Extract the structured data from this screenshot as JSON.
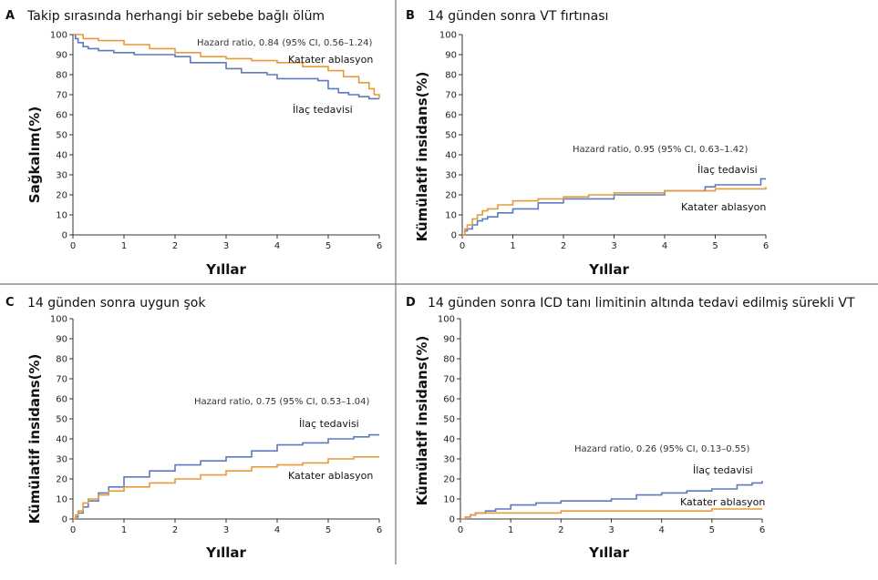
{
  "colors": {
    "ilac": "#5b7bbf",
    "ablasyon": "#e69a3a",
    "axis": "#333333",
    "divider": "#777777"
  },
  "chart_data": [
    {
      "type": "line",
      "panel": "A",
      "title": "Takip sırasında herhangi bir sebebe bağlı ölüm",
      "xlabel": "Yıllar",
      "ylabel": "Sağkalım(%)",
      "xlim": [
        0,
        6
      ],
      "ylim": [
        0,
        100
      ],
      "xticks": [
        "0",
        "1",
        "2",
        "3",
        "4",
        "5",
        "6"
      ],
      "yticks": [
        "0",
        "10",
        "20",
        "30",
        "40",
        "50",
        "60",
        "70",
        "80",
        "90",
        "100"
      ],
      "hazard_ratio": "Hazard ratio, 0.84 (95% CI, 0.56–1.24)",
      "series": [
        {
          "name": "İlaç tedavisi",
          "color_key": "ilac",
          "x": [
            0,
            0.05,
            0.1,
            0.2,
            0.3,
            0.5,
            0.8,
            1.2,
            2.0,
            2.3,
            3.0,
            3.3,
            3.8,
            4.0,
            4.2,
            4.8,
            5.0,
            5.2,
            5.4,
            5.6,
            5.8,
            6.0
          ],
          "y": [
            100,
            98,
            96,
            94,
            93,
            92,
            91,
            90,
            89,
            86,
            83,
            81,
            80,
            78,
            78,
            77,
            73,
            71,
            70,
            69,
            68,
            68
          ]
        },
        {
          "name": "Katater ablasyon",
          "color_key": "ablasyon",
          "x": [
            0,
            0.2,
            0.5,
            1.0,
            1.5,
            2.0,
            2.5,
            3.0,
            3.5,
            4.0,
            4.5,
            5.0,
            5.3,
            5.6,
            5.8,
            5.9,
            6.0
          ],
          "y": [
            100,
            98,
            97,
            95,
            93,
            91,
            89,
            88,
            87,
            86,
            84,
            82,
            79,
            76,
            73,
            70,
            68
          ]
        }
      ],
      "series_labels": [
        "Katater ablasyon",
        "İlaç tedavisi"
      ]
    },
    {
      "type": "line",
      "panel": "B",
      "title": "14 günden sonra VT fırtınası",
      "xlabel": "Yıllar",
      "ylabel": "Kümülatif insidans(%)",
      "xlim": [
        0,
        6
      ],
      "ylim": [
        0,
        100
      ],
      "xticks": [
        "0",
        "1",
        "2",
        "3",
        "4",
        "5",
        "6"
      ],
      "yticks": [
        "0",
        "10",
        "20",
        "30",
        "40",
        "50",
        "60",
        "70",
        "80",
        "90",
        "100"
      ],
      "hazard_ratio": "Hazard ratio, 0.95 (95% CI, 0.63–1.42)",
      "series": [
        {
          "name": "İlaç tedavisi",
          "color_key": "ilac",
          "x": [
            0,
            0.05,
            0.1,
            0.2,
            0.3,
            0.4,
            0.5,
            0.7,
            1.0,
            1.5,
            2.0,
            3.0,
            4.0,
            4.8,
            5.0,
            5.5,
            5.8,
            5.9,
            6.0
          ],
          "y": [
            0,
            2,
            3,
            5,
            7,
            8,
            9,
            11,
            13,
            16,
            18,
            20,
            22,
            24,
            25,
            25,
            25,
            28,
            28
          ]
        },
        {
          "name": "Katater ablasyon",
          "color_key": "ablasyon",
          "x": [
            0,
            0.05,
            0.1,
            0.2,
            0.3,
            0.4,
            0.5,
            0.7,
            1.0,
            1.5,
            2.0,
            2.5,
            3.0,
            4.0,
            5.0,
            6.0
          ],
          "y": [
            0,
            3,
            5,
            8,
            10,
            12,
            13,
            15,
            17,
            18,
            19,
            20,
            21,
            22,
            23,
            24
          ]
        }
      ],
      "series_labels": [
        "İlaç tedavisi",
        "Katater ablasyon"
      ]
    },
    {
      "type": "line",
      "panel": "C",
      "title": "14 günden sonra uygun şok",
      "xlabel": "Yıllar",
      "ylabel": "Kümülatif insidans(%)",
      "xlim": [
        0,
        6
      ],
      "ylim": [
        0,
        100
      ],
      "xticks": [
        "0",
        "1",
        "2",
        "3",
        "4",
        "5",
        "6"
      ],
      "yticks": [
        "0",
        "10",
        "20",
        "30",
        "40",
        "50",
        "60",
        "70",
        "80",
        "90",
        "100"
      ],
      "hazard_ratio": "Hazard ratio, 0.75 (95% CI, 0.53–1.04)",
      "series": [
        {
          "name": "İlaç tedavisi",
          "color_key": "ilac",
          "x": [
            0,
            0.05,
            0.1,
            0.2,
            0.3,
            0.5,
            0.7,
            1.0,
            1.5,
            2.0,
            2.5,
            3.0,
            3.5,
            4.0,
            4.5,
            5.0,
            5.5,
            5.8,
            6.0
          ],
          "y": [
            0,
            1,
            3,
            6,
            9,
            13,
            16,
            21,
            24,
            27,
            29,
            31,
            34,
            37,
            38,
            40,
            41,
            42,
            42
          ]
        },
        {
          "name": "Katater ablasyon",
          "color_key": "ablasyon",
          "x": [
            0,
            0.05,
            0.1,
            0.2,
            0.3,
            0.5,
            0.7,
            1.0,
            1.5,
            2.0,
            2.5,
            3.0,
            3.5,
            4.0,
            4.5,
            5.0,
            5.5,
            6.0
          ],
          "y": [
            0,
            2,
            4,
            8,
            10,
            12,
            14,
            16,
            18,
            20,
            22,
            24,
            26,
            27,
            28,
            30,
            31,
            31
          ]
        }
      ],
      "series_labels": [
        "İlaç tedavisi",
        "Katater ablasyon"
      ]
    },
    {
      "type": "line",
      "panel": "D",
      "title": "14 günden sonra ICD tanı limitinin altında tedavi edilmiş sürekli VT",
      "xlabel": "Yıllar",
      "ylabel": "Kümülatif insidans(%)",
      "xlim": [
        0,
        6
      ],
      "ylim": [
        0,
        100
      ],
      "xticks": [
        "0",
        "1",
        "2",
        "3",
        "4",
        "5",
        "6"
      ],
      "yticks": [
        "0",
        "10",
        "20",
        "30",
        "40",
        "50",
        "60",
        "70",
        "80",
        "90",
        "100"
      ],
      "hazard_ratio": "Hazard ratio, 0.26 (95% CI, 0.13–0.55)",
      "series": [
        {
          "name": "İlaç tedavisi",
          "color_key": "ilac",
          "x": [
            0,
            0.1,
            0.2,
            0.3,
            0.5,
            0.7,
            1.0,
            1.5,
            2.0,
            2.5,
            3.0,
            3.5,
            4.0,
            4.5,
            5.0,
            5.5,
            5.8,
            6.0
          ],
          "y": [
            0,
            1,
            2,
            3,
            4,
            5,
            7,
            8,
            9,
            9,
            10,
            12,
            13,
            14,
            15,
            17,
            18,
            19
          ]
        },
        {
          "name": "Katater ablasyon",
          "color_key": "ablasyon",
          "x": [
            0,
            0.1,
            0.2,
            0.3,
            0.5,
            1.0,
            2.0,
            3.0,
            4.0,
            5.0,
            6.0
          ],
          "y": [
            0,
            1,
            2,
            3,
            3,
            3,
            4,
            4,
            4,
            5,
            5
          ]
        }
      ],
      "series_labels": [
        "İlaç tedavisi",
        "Katater ablasyon"
      ]
    }
  ]
}
